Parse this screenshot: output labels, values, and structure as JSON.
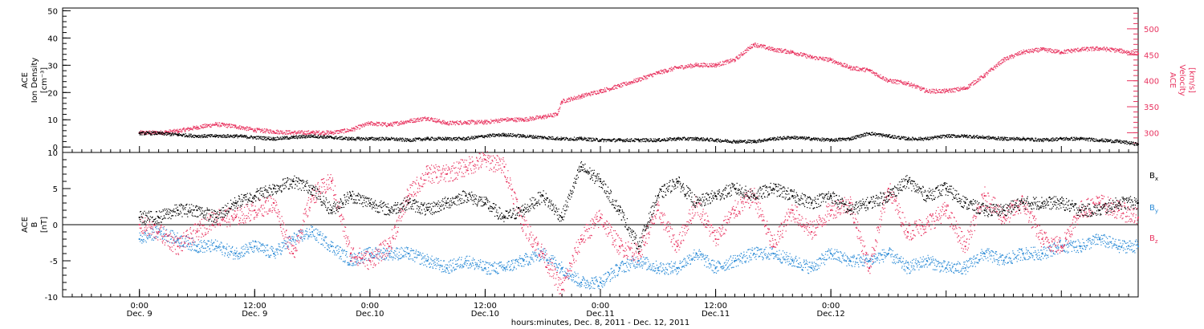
{
  "chart_data": [
    {
      "type": "scatter",
      "panel": "top",
      "left_axis": {
        "label_lines": [
          "ACE",
          "Ion Density",
          "[cm⁻³]"
        ],
        "ticks": [
          0,
          10,
          20,
          30,
          40,
          50
        ],
        "tick_labels": [
          "0",
          "10",
          "20",
          "30",
          "40",
          "50"
        ],
        "range": [
          -2,
          51
        ]
      },
      "right_axis": {
        "label_lines": [
          "ACE",
          "Velocity",
          "[km/s]"
        ],
        "ticks": [
          300,
          350,
          400,
          450,
          500
        ],
        "tick_labels": [
          "300",
          "350",
          "400",
          "450",
          "500"
        ],
        "range": [
          262,
          540
        ],
        "color": "#e8335f"
      },
      "series": [
        {
          "axis": "left",
          "color": "#000000",
          "x_hours": [
            0,
            2,
            4,
            6,
            8,
            10,
            12,
            14,
            16,
            18,
            20,
            22,
            24,
            26,
            28,
            30,
            32,
            34,
            36,
            38,
            40,
            42,
            44,
            46,
            48,
            50,
            52,
            54,
            56,
            58,
            60,
            62,
            64,
            66,
            68,
            70,
            72,
            74,
            76,
            78,
            80,
            82,
            84,
            86,
            88,
            90,
            92,
            94,
            96,
            98,
            100,
            102,
            104
          ],
          "values": [
            5,
            5,
            4.5,
            4,
            4,
            4,
            3.5,
            3,
            3.5,
            4,
            3.5,
            3,
            3,
            3,
            2.5,
            3,
            3,
            3,
            4,
            4.5,
            4,
            3.5,
            3,
            3,
            2.5,
            2.5,
            2.5,
            2.5,
            3,
            3,
            2.5,
            2,
            2,
            3,
            3.5,
            3,
            2.5,
            3,
            5,
            4,
            3,
            3,
            4,
            4,
            3.5,
            3,
            3,
            2.5,
            3,
            3,
            2.5,
            2,
            1
          ]
        },
        {
          "axis": "right",
          "color": "#e8335f",
          "x_hours": [
            0,
            2,
            4,
            6,
            8,
            10,
            12,
            14,
            16,
            18,
            20,
            22,
            24,
            26,
            28,
            30,
            32,
            34,
            36,
            38,
            40,
            42,
            43.5,
            44,
            46,
            48,
            50,
            52,
            54,
            56,
            58,
            60,
            62,
            64,
            66,
            68,
            70,
            72,
            74,
            76,
            78,
            80,
            82,
            84,
            86,
            88,
            90,
            92,
            94,
            96,
            98,
            100,
            102,
            104
          ],
          "values": [
            300,
            300,
            303,
            310,
            316,
            312,
            305,
            302,
            300,
            300,
            300,
            305,
            318,
            315,
            322,
            328,
            318,
            320,
            320,
            325,
            325,
            330,
            335,
            360,
            370,
            380,
            390,
            402,
            415,
            425,
            430,
            430,
            440,
            470,
            460,
            455,
            445,
            440,
            425,
            420,
            400,
            395,
            380,
            380,
            385,
            410,
            440,
            455,
            460,
            455,
            460,
            462,
            458,
            452
          ]
        }
      ]
    },
    {
      "type": "scatter",
      "panel": "bottom",
      "left_axis": {
        "label_lines": [
          "ACE",
          "B",
          "[nT]"
        ],
        "ticks": [
          -10,
          -5,
          0,
          5,
          10
        ],
        "tick_labels": [
          "-10",
          "-5",
          "0",
          "5",
          "10"
        ],
        "range": [
          -10,
          10
        ]
      },
      "legend": [
        {
          "text": "B",
          "sub": "x",
          "color": "#000000"
        },
        {
          "text": "B",
          "sub": "y",
          "color": "#2a8ad6"
        },
        {
          "text": "B",
          "sub": "z",
          "color": "#e8335f"
        }
      ],
      "series": [
        {
          "color": "#000000",
          "x_hours": [
            0,
            2,
            4,
            6,
            8,
            10,
            12,
            14,
            16,
            18,
            20,
            22,
            24,
            26,
            28,
            30,
            32,
            34,
            36,
            38,
            40,
            42,
            44,
            46,
            48,
            50,
            52,
            54,
            56,
            58,
            60,
            62,
            64,
            66,
            68,
            70,
            72,
            74,
            76,
            78,
            80,
            82,
            84,
            86,
            88,
            90,
            92,
            94,
            96,
            98,
            100,
            102,
            104
          ],
          "values": [
            1,
            1,
            2,
            2,
            1,
            3,
            4,
            5,
            6,
            5,
            2,
            4,
            3,
            2,
            3,
            2,
            3,
            4,
            3,
            1,
            2,
            4,
            1,
            8,
            6,
            2,
            -3,
            4,
            6,
            3,
            4,
            5,
            4,
            5,
            4,
            3,
            4,
            2,
            3,
            4,
            6,
            4,
            5,
            3,
            2,
            2,
            3,
            3,
            3,
            2,
            2,
            3,
            3
          ]
        },
        {
          "color": "#2a8ad6",
          "x_hours": [
            0,
            2,
            4,
            6,
            8,
            10,
            12,
            14,
            16,
            18,
            20,
            22,
            24,
            26,
            28,
            30,
            32,
            34,
            36,
            38,
            40,
            42,
            44,
            46,
            48,
            50,
            52,
            54,
            56,
            58,
            60,
            62,
            64,
            66,
            68,
            70,
            72,
            74,
            76,
            78,
            80,
            82,
            84,
            86,
            88,
            90,
            92,
            94,
            96,
            98,
            100,
            102,
            104
          ],
          "values": [
            -2,
            -1,
            -2,
            -3,
            -3,
            -4,
            -3,
            -4,
            -2,
            -1,
            -3,
            -5,
            -4,
            -4,
            -4,
            -5,
            -6,
            -5,
            -6,
            -6,
            -5,
            -4,
            -6,
            -8,
            -8,
            -6,
            -5,
            -6,
            -6,
            -4,
            -6,
            -5,
            -4,
            -4,
            -5,
            -6,
            -4,
            -5,
            -5,
            -4,
            -6,
            -5,
            -6,
            -6,
            -4,
            -5,
            -4,
            -4,
            -3,
            -3,
            -2,
            -3,
            -3
          ]
        },
        {
          "color": "#e8335f",
          "x_hours": [
            0,
            2,
            4,
            6,
            8,
            10,
            12,
            14,
            16,
            18,
            20,
            22,
            24,
            26,
            28,
            30,
            32,
            34,
            36,
            38,
            40,
            42,
            44,
            46,
            48,
            50,
            52,
            54,
            56,
            58,
            60,
            62,
            64,
            66,
            68,
            70,
            72,
            74,
            76,
            78,
            80,
            82,
            84,
            86,
            88,
            90,
            92,
            94,
            96,
            98,
            100,
            102,
            104
          ],
          "values": [
            0,
            -1,
            -3,
            -1,
            1,
            1,
            2,
            3,
            -4,
            4,
            6,
            -4,
            -5,
            -3,
            4,
            7,
            7,
            8,
            9,
            8,
            0,
            -4,
            -9,
            -2,
            1,
            -3,
            -4,
            2,
            -3,
            3,
            -2,
            2,
            4,
            -3,
            2,
            -1,
            2,
            3,
            -6,
            5,
            -1,
            0,
            2,
            -3,
            4,
            1,
            3,
            -2,
            -3,
            2,
            3,
            2,
            1
          ]
        }
      ]
    }
  ],
  "x_axis": {
    "range_hours": [
      -8,
      104
    ],
    "title": "hours:minutes, Dec. 8, 2011 - Dec. 12, 2011",
    "major_ticks": [
      {
        "hours": 0,
        "time": "0:00",
        "date": "Dec. 9"
      },
      {
        "hours": 12,
        "time": "12:00",
        "date": "Dec. 9"
      },
      {
        "hours": 24,
        "time": "0:00",
        "date": "Dec.10"
      },
      {
        "hours": 36,
        "time": "12:00",
        "date": "Dec.10"
      },
      {
        "hours": 48,
        "time": "0:00",
        "date": "Dec.11"
      },
      {
        "hours": 60,
        "time": "12:00",
        "date": "Dec.11"
      },
      {
        "hours": 72,
        "time": "0:00",
        "date": "Dec.12"
      }
    ]
  }
}
